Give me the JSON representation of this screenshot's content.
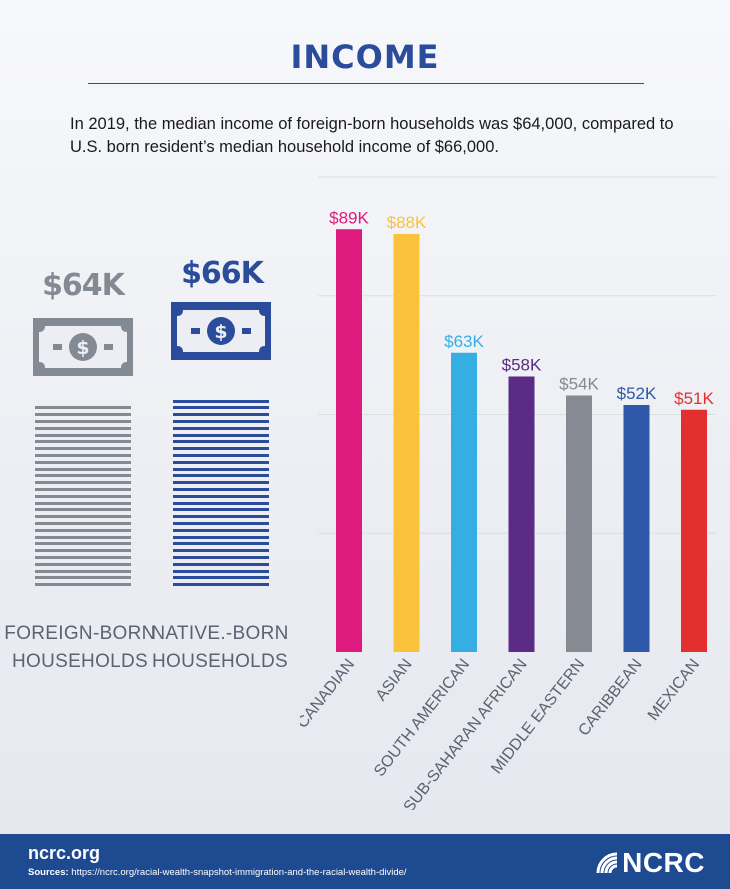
{
  "title": "INCOME",
  "intro": "In 2019, the median income of foreign-born households was $64,000, compared to U.S. born resident’s median household income of $66,000.",
  "colors": {
    "title": "#2b4c9b",
    "foreign": "#848a94",
    "native": "#2b4c9b",
    "footer": "#1e4a92"
  },
  "households": {
    "foreign": {
      "value_label": "$64K",
      "label_line1": "FOREIGN-BORN",
      "label_line2": "HOUSEHOLDS",
      "icon": "dollar-bill-icon"
    },
    "native": {
      "value_label": "$66K",
      "label_line1": "NATIVE.-BORN",
      "label_line2": "HOUSEHOLDS",
      "icon": "dollar-bill-icon"
    }
  },
  "chart_data": [
    {
      "type": "bar",
      "categories": [
        "FOREIGN-BORN HOUSEHOLDS",
        "NATIVE.-BORN HOUSEHOLDS"
      ],
      "values": [
        64,
        66
      ],
      "data_labels": [
        "$64K",
        "$66K"
      ],
      "unit": "thousand USD"
    },
    {
      "type": "bar",
      "categories": [
        "CANADIAN",
        "ASIAN",
        "SOUTH AMERICAN",
        "SUB-SAHARAN AFRICAN",
        "MIDDLE EASTERN",
        "CARIBBEAN",
        "MEXICAN"
      ],
      "values": [
        89,
        88,
        63,
        58,
        54,
        52,
        51
      ],
      "data_labels": [
        "$89K",
        "$88K",
        "$63K",
        "$58K",
        "$54K",
        "$52K",
        "$51K"
      ],
      "colors": [
        "#de1a7e",
        "#fbc23c",
        "#35aee3",
        "#5b2b86",
        "#858a93",
        "#2e59a8",
        "#e3302f"
      ],
      "ylim": [
        0,
        100
      ],
      "grid": true,
      "unit": "thousand USD"
    }
  ],
  "footer": {
    "site": "ncrc.org",
    "sources_label": "Sources:",
    "sources_url": "https://ncrc.org/racial-wealth-snapshot-immigration-and-the-racial-wealth-divide/",
    "logo_text": "NCRC"
  }
}
